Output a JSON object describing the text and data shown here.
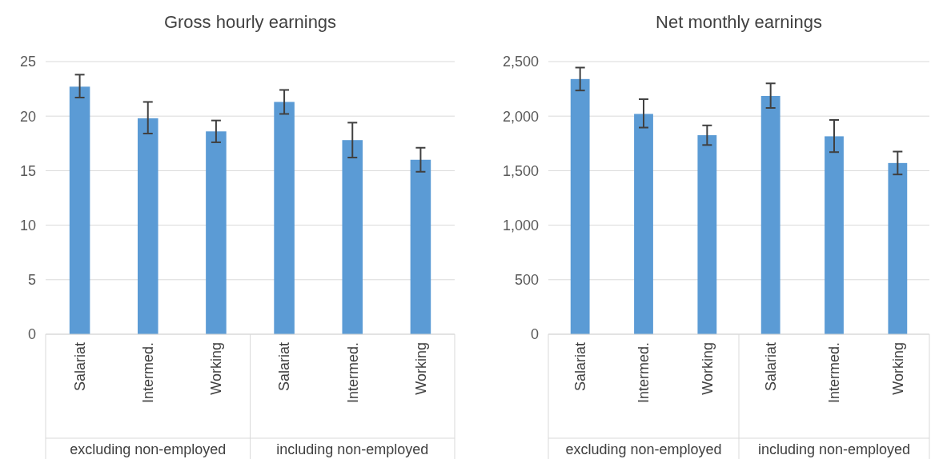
{
  "chart_data": [
    {
      "type": "bar",
      "title": "Gross hourly earnings",
      "categories": [
        "Salariat",
        "Intermed.",
        "Working",
        "Salariat",
        "Intermed.",
        "Working"
      ],
      "values": [
        22.7,
        19.8,
        18.6,
        21.3,
        17.8,
        16.0
      ],
      "errors": [
        [
          21.7,
          23.8
        ],
        [
          18.4,
          21.3
        ],
        [
          17.6,
          19.6
        ],
        [
          20.2,
          22.4
        ],
        [
          16.2,
          19.4
        ],
        [
          14.9,
          17.1
        ]
      ],
      "color": "#5b9bd5",
      "ylim": [
        0,
        25
      ],
      "yticks": [
        0,
        5,
        10,
        15,
        20,
        25
      ],
      "grid": "y",
      "annotations": [
        "excluding non-employed",
        "including non-employed"
      ]
    },
    {
      "type": "bar",
      "title": "Net monthly earnings",
      "categories": [
        "Salariat",
        "Intermed.",
        "Working",
        "Salariat",
        "Intermed.",
        "Working"
      ],
      "values": [
        2340,
        2020,
        1825,
        2185,
        1815,
        1570
      ],
      "errors": [
        [
          2235,
          2445
        ],
        [
          1895,
          2155
        ],
        [
          1735,
          1915
        ],
        [
          2075,
          2300
        ],
        [
          1670,
          1965
        ],
        [
          1465,
          1675
        ]
      ],
      "color": "#5b9bd5",
      "ylim": [
        0,
        2500
      ],
      "yticks": [
        {
          "value": 0,
          "label": "0"
        },
        {
          "value": 500,
          "label": "500"
        },
        {
          "value": 1000,
          "label": "1,000"
        },
        {
          "value": 1500,
          "label": "1,500"
        },
        {
          "value": 2000,
          "label": "2,000"
        },
        {
          "value": 2500,
          "label": "2,500"
        }
      ],
      "grid": "y",
      "annotations": [
        "excluding non-employed",
        "including non-employed"
      ]
    }
  ]
}
